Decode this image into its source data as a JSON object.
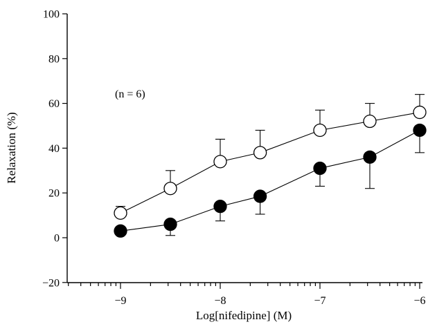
{
  "chart_data": {
    "type": "line",
    "title": "",
    "xlabel": "Log[nifedipine] (M)",
    "ylabel": "Relaxation (%)",
    "xlim": [
      -9.5,
      -5.95
    ],
    "ylim": [
      -20,
      100
    ],
    "x_ticks": [
      -9,
      -8,
      -7,
      -6
    ],
    "x_tick_labels": [
      "−9",
      "−8",
      "−7",
      "−6"
    ],
    "x_scale": "log-concentration with minor ticks",
    "y_ticks": [
      -20,
      0,
      20,
      40,
      60,
      80,
      100
    ],
    "y_tick_labels": [
      "−20",
      "0",
      "20",
      "40",
      "60",
      "80",
      "100"
    ],
    "annotation": "(n = 6)",
    "x": [
      -9,
      -8.5,
      -8,
      -7.6,
      -7,
      -6.5,
      -6
    ],
    "series": [
      {
        "marker": "open-circle",
        "values": [
          11,
          22,
          34,
          38,
          48,
          52,
          56
        ],
        "error_up": [
          3,
          8,
          10,
          10,
          9,
          8,
          8
        ],
        "error_down": [
          0,
          0,
          0,
          0,
          0,
          0,
          0
        ]
      },
      {
        "marker": "filled-circle",
        "values": [
          3,
          6,
          14,
          18.5,
          31,
          36,
          48
        ],
        "error_up": [
          0,
          0,
          0,
          0,
          0,
          0,
          0
        ],
        "error_down": [
          0,
          5,
          6.5,
          8,
          8,
          14,
          10
        ]
      }
    ],
    "colors": {
      "line": "#000000",
      "open_fill": "#ffffff",
      "filled_fill": "#000000"
    },
    "grid": false
  }
}
